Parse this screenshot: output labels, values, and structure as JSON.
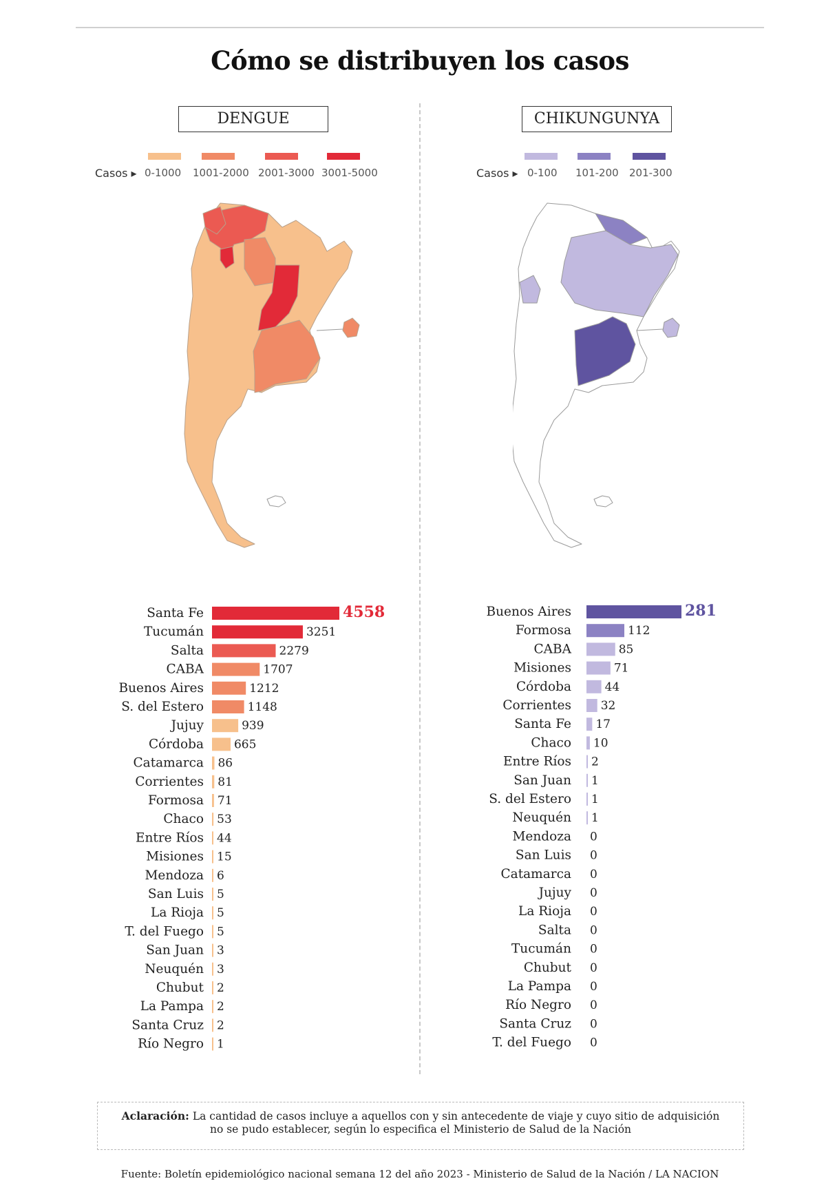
{
  "title": "Cómo se distribuyen los casos",
  "dengue": {
    "section_label": "DENGUE",
    "legend_label": "Casos ▸",
    "legend": [
      {
        "range": "0-1000",
        "color": "#f7c08c"
      },
      {
        "range": "1001-2000",
        "color": "#f08a66"
      },
      {
        "range": "2001-3000",
        "color": "#eb5a52"
      },
      {
        "range": "3001-5000",
        "color": "#e22a38"
      }
    ],
    "map_colors": {
      "base": "#f7c08c",
      "mid": "#f08a66",
      "high": "#eb5a52",
      "top": "#e22a38"
    }
  },
  "chikungunya": {
    "section_label": "CHIKUNGUNYA",
    "legend_label": "Casos ▸",
    "legend": [
      {
        "range": "0-100",
        "color": "#c1b9df"
      },
      {
        "range": "101-200",
        "color": "#8c82c3"
      },
      {
        "range": "201-300",
        "color": "#5f54a0"
      }
    ],
    "map_colors": {
      "base": "#ffffff",
      "low": "#c1b9df",
      "mid": "#8c82c3",
      "top": "#5f54a0"
    }
  },
  "chart_data": [
    {
      "type": "bar",
      "title": "DENGUE",
      "orientation": "horizontal",
      "categories": [
        "Santa Fe",
        "Tucumán",
        "Salta",
        "CABA",
        "Buenos Aires",
        "S. del Estero",
        "Jujuy",
        "Córdoba",
        "Catamarca",
        "Corrientes",
        "Formosa",
        "Chaco",
        "Entre Ríos",
        "Misiones",
        "Mendoza",
        "San Luis",
        "La Rioja",
        "T. del Fuego",
        "San Juan",
        "Neuquén",
        "Chubut",
        "La Pampa",
        "Santa Cruz",
        "Río Negro"
      ],
      "values": [
        4558,
        3251,
        2279,
        1707,
        1212,
        1148,
        939,
        665,
        86,
        81,
        71,
        53,
        44,
        15,
        6,
        5,
        5,
        5,
        3,
        3,
        2,
        2,
        2,
        1
      ],
      "value_labels": [
        "4558",
        "3251",
        "2279",
        "1707",
        "1212",
        "1148",
        "939",
        "665",
        "86",
        "81",
        "71",
        "53",
        "44",
        "15",
        "6",
        "5",
        "5",
        "5",
        "3",
        "3",
        "2",
        "2",
        "2",
        "1"
      ],
      "xlim": [
        0,
        4558
      ]
    },
    {
      "type": "bar",
      "title": "CHIKUNGUNYA",
      "orientation": "horizontal",
      "categories": [
        "Buenos Aires",
        "Formosa",
        "CABA",
        "Misiones",
        "Córdoba",
        "Corrientes",
        "Santa Fe",
        "Chaco",
        "Entre Ríos",
        "San Juan",
        "S. del Estero",
        "Neuquén",
        "Mendoza",
        "San Luis",
        "Catamarca",
        "Jujuy",
        "La Rioja",
        "Salta",
        "Tucumán",
        "Chubut",
        "La Pampa",
        "Río Negro",
        "Santa Cruz",
        "T. del Fuego"
      ],
      "values": [
        281,
        112,
        85,
        71,
        44,
        32,
        17,
        10,
        2,
        1,
        1,
        1,
        0,
        0,
        0,
        0,
        0,
        0,
        0,
        0,
        0,
        0,
        0,
        0
      ],
      "value_labels": [
        "281",
        "112",
        "85",
        "71",
        "44",
        "32",
        "17",
        "10",
        "2",
        "1",
        "1",
        "1",
        "0",
        "0",
        "0",
        "0",
        "0",
        "0",
        "0",
        "0",
        "0",
        "0",
        "0",
        "0"
      ],
      "xlim": [
        0,
        281
      ]
    }
  ],
  "note": {
    "label": "Aclaración:",
    "text": "La cantidad de casos incluye a aquellos con y sin antecedente de viaje y cuyo sitio de adquisición no se pudo establecer, según lo especifica el Ministerio de Salud de la Nación"
  },
  "source": "Fuente: Boletín epidemiológico nacional semana 12 del año 2023 - Ministerio de Salud de la Nación / LA NACION"
}
